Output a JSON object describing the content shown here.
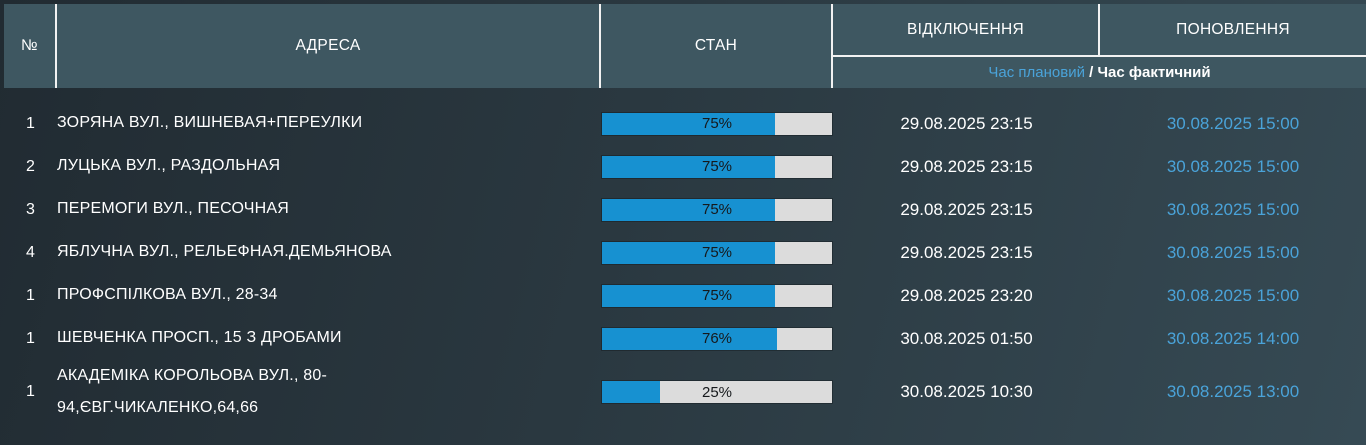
{
  "colors": {
    "header_bg": "#3e5761",
    "divider": "#f2f2f2",
    "accent_blue": "#4aa3d9",
    "bar_fill": "#1791d1",
    "bar_track": "#dcdcdc",
    "bar_label": "#16191c",
    "text_primary": "#ffffff",
    "page_bg_dark": "#212b32",
    "page_bg_mid": "#2a3840",
    "page_bg_light": "#364a54"
  },
  "header": {
    "col_number": "№",
    "col_address": "АДРЕСА",
    "col_status": "СТАН",
    "col_outage": "ВІДКЛЮЧЕННЯ",
    "col_restore": "ПОНОВЛЕННЯ",
    "legend_planned": "Час плановий",
    "legend_separator": " / ",
    "legend_actual": "Час фактичний"
  },
  "rows": [
    {
      "num": "1",
      "address": "ЗОРЯНА ВУЛ., ВИШНЕВАЯ+ПЕРЕУЛКИ",
      "percent": 75,
      "percent_label": "75%",
      "outage_time": "29.08.2025 23:15",
      "restore_time": "30.08.2025 15:00"
    },
    {
      "num": "2",
      "address": "ЛУЦЬКА ВУЛ., РАЗДОЛЬНАЯ",
      "percent": 75,
      "percent_label": "75%",
      "outage_time": "29.08.2025 23:15",
      "restore_time": "30.08.2025 15:00"
    },
    {
      "num": "3",
      "address": "ПЕРЕМОГИ ВУЛ., ПЕСОЧНАЯ",
      "percent": 75,
      "percent_label": "75%",
      "outage_time": "29.08.2025 23:15",
      "restore_time": "30.08.2025 15:00"
    },
    {
      "num": "4",
      "address": "ЯБЛУЧНА ВУЛ., РЕЛЬЕФНАЯ.ДЕМЬЯНОВА",
      "percent": 75,
      "percent_label": "75%",
      "outage_time": "29.08.2025 23:15",
      "restore_time": "30.08.2025 15:00"
    },
    {
      "num": "1",
      "address": "ПРОФСПІЛКОВА ВУЛ., 28-34",
      "percent": 75,
      "percent_label": "75%",
      "outage_time": "29.08.2025 23:20",
      "restore_time": "30.08.2025 15:00"
    },
    {
      "num": "1",
      "address": "ШЕВЧЕНКА ПРОСП., 15 З ДРОБАМИ",
      "percent": 76,
      "percent_label": "76%",
      "outage_time": "30.08.2025 01:50",
      "restore_time": "30.08.2025 14:00"
    },
    {
      "num": "1",
      "address": "АКАДЕМІКА КОРОЛЬОВА ВУЛ., 80-94,ЄВГ.ЧИКАЛЕНКО,64,66",
      "percent": 25,
      "percent_label": "25%",
      "outage_time": "30.08.2025 10:30",
      "restore_time": "30.08.2025 13:00"
    }
  ]
}
